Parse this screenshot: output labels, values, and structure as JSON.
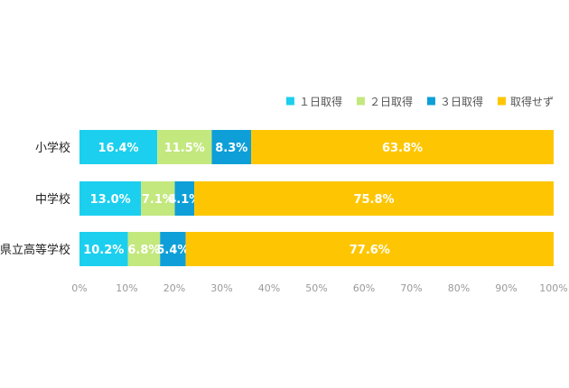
{
  "chart_data": {
    "type": "bar",
    "orientation": "horizontal",
    "stacked": true,
    "percent": true,
    "categories": [
      "小学校",
      "中学校",
      "県立高等学校"
    ],
    "series": [
      {
        "name": "１日取得",
        "color": "#1ccfef",
        "values": [
          16.4,
          13.0,
          10.2
        ],
        "labels": [
          "16.4%",
          "13.0%",
          "10.2%"
        ]
      },
      {
        "name": "２日取得",
        "color": "#c3e87e",
        "values": [
          11.5,
          7.1,
          6.8
        ],
        "labels": [
          "11.5%",
          "7.1%",
          "6.8%"
        ]
      },
      {
        "name": "３日取得",
        "color": "#0e9fd8",
        "values": [
          8.3,
          4.1,
          5.4
        ],
        "labels": [
          "8.3%",
          "4.1%",
          "5.4%"
        ]
      },
      {
        "name": "取得せず",
        "color": "#fec602",
        "values": [
          63.8,
          75.8,
          77.6
        ],
        "labels": [
          "63.8%",
          "75.8%",
          "77.6%"
        ]
      }
    ],
    "xlim": [
      0,
      100
    ],
    "xticks": [
      0,
      10,
      20,
      30,
      40,
      50,
      60,
      70,
      80,
      90,
      100
    ],
    "xtick_labels": [
      "0%",
      "10%",
      "20%",
      "30%",
      "40%",
      "50%",
      "60%",
      "70%",
      "80%",
      "90%",
      "100%"
    ],
    "grid": false,
    "legend_position": "top-right"
  }
}
